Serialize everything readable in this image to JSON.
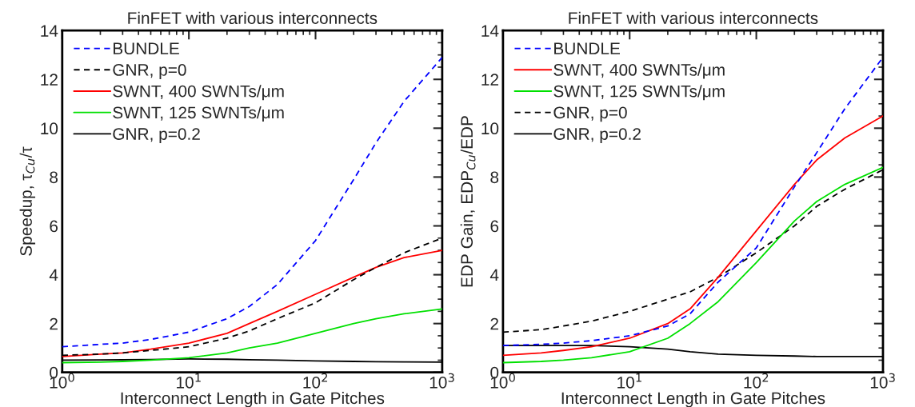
{
  "chart_data": [
    {
      "type": "line",
      "title": "FinFET with various interconnects",
      "xlabel": "Interconnect Length in Gate Pitches",
      "ylabel": "Speedup, τ$_{Cu}$/τ",
      "log": "x",
      "xlim": [
        1,
        1000
      ],
      "xticks": [
        {
          "value": 1,
          "label": "10$^{0}$"
        },
        {
          "value": 10,
          "label": "10$^{1}$"
        },
        {
          "value": 100,
          "label": "10$^{2}$"
        },
        {
          "value": 1000,
          "label": "10$^{3}$"
        }
      ],
      "ylim": [
        0,
        14
      ],
      "yticks": [
        0,
        2,
        4,
        6,
        8,
        10,
        12,
        14
      ],
      "grid": false,
      "legend": "top left",
      "x": [
        1,
        2,
        3,
        5,
        10,
        20,
        30,
        50,
        100,
        200,
        300,
        500,
        1000
      ],
      "series": [
        {
          "name": "BUNDLE",
          "color": "#0000ff",
          "line_style": "dashed",
          "values": [
            1.05,
            1.15,
            1.2,
            1.35,
            1.65,
            2.2,
            2.7,
            3.6,
            5.4,
            7.9,
            9.4,
            11.1,
            12.9
          ]
        },
        {
          "name": "GNR, p=0",
          "color": "#000000",
          "line_style": "dashed",
          "values": [
            0.7,
            0.75,
            0.8,
            0.9,
            1.05,
            1.4,
            1.7,
            2.2,
            2.85,
            3.8,
            4.3,
            4.9,
            5.5
          ]
        },
        {
          "name": "SWNT, 400 SWNTs/μm",
          "color": "#ff0000",
          "line_style": "solid",
          "values": [
            0.65,
            0.75,
            0.8,
            0.95,
            1.2,
            1.6,
            2.0,
            2.5,
            3.2,
            3.9,
            4.3,
            4.7,
            5.0
          ]
        },
        {
          "name": "SWNT, 125 SWNTs/μm",
          "color": "#00e000",
          "line_style": "solid",
          "values": [
            0.4,
            0.42,
            0.45,
            0.5,
            0.6,
            0.8,
            1.0,
            1.2,
            1.6,
            2.0,
            2.2,
            2.4,
            2.6
          ]
        },
        {
          "name": "GNR, p=0.2",
          "color": "#000000",
          "line_style": "solid",
          "values": [
            0.5,
            0.51,
            0.52,
            0.53,
            0.55,
            0.54,
            0.52,
            0.5,
            0.47,
            0.45,
            0.44,
            0.43,
            0.42
          ]
        }
      ]
    },
    {
      "type": "line",
      "title": "FinFET with various interconnects",
      "xlabel": "Interconnect Length in Gate Pitches",
      "ylabel": "EDP Gain, EDP$_{Cu}$/EDP",
      "log": "x",
      "xlim": [
        1,
        1000
      ],
      "xticks": [
        {
          "value": 1,
          "label": "10$^{0}$"
        },
        {
          "value": 10,
          "label": "10$^{1}$"
        },
        {
          "value": 100,
          "label": "10$^{2}$"
        },
        {
          "value": 1000,
          "label": "10$^{3}$"
        }
      ],
      "ylim": [
        0,
        14
      ],
      "yticks": [
        0,
        2,
        4,
        6,
        8,
        10,
        12,
        14
      ],
      "grid": false,
      "legend": "top left",
      "x": [
        1,
        2,
        3,
        5,
        10,
        20,
        30,
        50,
        100,
        200,
        300,
        500,
        1000
      ],
      "series": [
        {
          "name": "BUNDLE",
          "color": "#0000ff",
          "line_style": "dashed",
          "values": [
            1.1,
            1.15,
            1.2,
            1.3,
            1.5,
            1.9,
            2.4,
            3.7,
            5.1,
            7.6,
            9.0,
            10.8,
            12.9
          ]
        },
        {
          "name": "SWNT, 400 SWNTs/μm",
          "color": "#ff0000",
          "line_style": "solid",
          "values": [
            0.7,
            0.8,
            0.9,
            1.05,
            1.4,
            2.0,
            2.6,
            3.9,
            5.8,
            7.7,
            8.7,
            9.6,
            10.5
          ]
        },
        {
          "name": "SWNT, 125 SWNTs/μm",
          "color": "#00e000",
          "line_style": "solid",
          "values": [
            0.4,
            0.45,
            0.5,
            0.6,
            0.85,
            1.4,
            2.0,
            2.9,
            4.5,
            6.2,
            7.0,
            7.7,
            8.4
          ]
        },
        {
          "name": "GNR, p=0",
          "color": "#000000",
          "line_style": "dashed",
          "values": [
            1.65,
            1.75,
            1.9,
            2.1,
            2.5,
            3.0,
            3.3,
            3.9,
            4.9,
            6.0,
            6.8,
            7.5,
            8.3
          ]
        },
        {
          "name": "GNR, p=0.2",
          "color": "#000000",
          "line_style": "solid",
          "values": [
            1.1,
            1.1,
            1.1,
            1.1,
            1.05,
            0.95,
            0.85,
            0.75,
            0.7,
            0.67,
            0.65,
            0.65,
            0.65
          ]
        }
      ]
    }
  ]
}
